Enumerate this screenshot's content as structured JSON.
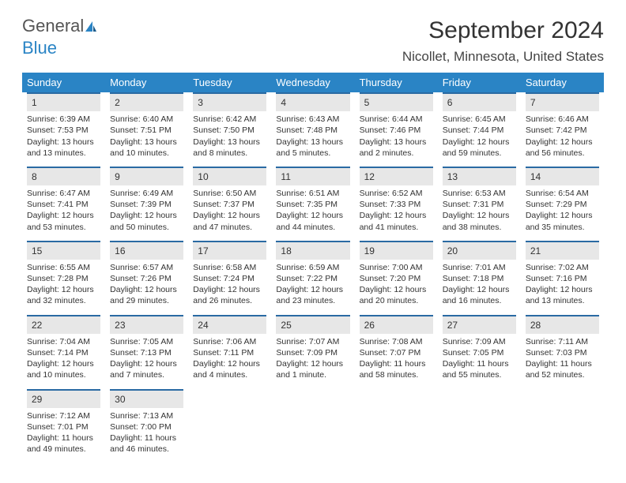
{
  "logo": {
    "text1": "General",
    "text2": "Blue"
  },
  "title": "September 2024",
  "location": "Nicollet, Minnesota, United States",
  "colors": {
    "header_bg": "#2a84c5",
    "header_text": "#ffffff",
    "daynum_bg": "#e7e7e7",
    "daynum_border": "#2a6aa3",
    "body_text": "#333333",
    "logo_gray": "#555555",
    "logo_blue": "#2a84c5"
  },
  "day_headers": [
    "Sunday",
    "Monday",
    "Tuesday",
    "Wednesday",
    "Thursday",
    "Friday",
    "Saturday"
  ],
  "weeks": [
    [
      {
        "n": "1",
        "sr": "6:39 AM",
        "ss": "7:53 PM",
        "dl": "13 hours and 13 minutes."
      },
      {
        "n": "2",
        "sr": "6:40 AM",
        "ss": "7:51 PM",
        "dl": "13 hours and 10 minutes."
      },
      {
        "n": "3",
        "sr": "6:42 AM",
        "ss": "7:50 PM",
        "dl": "13 hours and 8 minutes."
      },
      {
        "n": "4",
        "sr": "6:43 AM",
        "ss": "7:48 PM",
        "dl": "13 hours and 5 minutes."
      },
      {
        "n": "5",
        "sr": "6:44 AM",
        "ss": "7:46 PM",
        "dl": "13 hours and 2 minutes."
      },
      {
        "n": "6",
        "sr": "6:45 AM",
        "ss": "7:44 PM",
        "dl": "12 hours and 59 minutes."
      },
      {
        "n": "7",
        "sr": "6:46 AM",
        "ss": "7:42 PM",
        "dl": "12 hours and 56 minutes."
      }
    ],
    [
      {
        "n": "8",
        "sr": "6:47 AM",
        "ss": "7:41 PM",
        "dl": "12 hours and 53 minutes."
      },
      {
        "n": "9",
        "sr": "6:49 AM",
        "ss": "7:39 PM",
        "dl": "12 hours and 50 minutes."
      },
      {
        "n": "10",
        "sr": "6:50 AM",
        "ss": "7:37 PM",
        "dl": "12 hours and 47 minutes."
      },
      {
        "n": "11",
        "sr": "6:51 AM",
        "ss": "7:35 PM",
        "dl": "12 hours and 44 minutes."
      },
      {
        "n": "12",
        "sr": "6:52 AM",
        "ss": "7:33 PM",
        "dl": "12 hours and 41 minutes."
      },
      {
        "n": "13",
        "sr": "6:53 AM",
        "ss": "7:31 PM",
        "dl": "12 hours and 38 minutes."
      },
      {
        "n": "14",
        "sr": "6:54 AM",
        "ss": "7:29 PM",
        "dl": "12 hours and 35 minutes."
      }
    ],
    [
      {
        "n": "15",
        "sr": "6:55 AM",
        "ss": "7:28 PM",
        "dl": "12 hours and 32 minutes."
      },
      {
        "n": "16",
        "sr": "6:57 AM",
        "ss": "7:26 PM",
        "dl": "12 hours and 29 minutes."
      },
      {
        "n": "17",
        "sr": "6:58 AM",
        "ss": "7:24 PM",
        "dl": "12 hours and 26 minutes."
      },
      {
        "n": "18",
        "sr": "6:59 AM",
        "ss": "7:22 PM",
        "dl": "12 hours and 23 minutes."
      },
      {
        "n": "19",
        "sr": "7:00 AM",
        "ss": "7:20 PM",
        "dl": "12 hours and 20 minutes."
      },
      {
        "n": "20",
        "sr": "7:01 AM",
        "ss": "7:18 PM",
        "dl": "12 hours and 16 minutes."
      },
      {
        "n": "21",
        "sr": "7:02 AM",
        "ss": "7:16 PM",
        "dl": "12 hours and 13 minutes."
      }
    ],
    [
      {
        "n": "22",
        "sr": "7:04 AM",
        "ss": "7:14 PM",
        "dl": "12 hours and 10 minutes."
      },
      {
        "n": "23",
        "sr": "7:05 AM",
        "ss": "7:13 PM",
        "dl": "12 hours and 7 minutes."
      },
      {
        "n": "24",
        "sr": "7:06 AM",
        "ss": "7:11 PM",
        "dl": "12 hours and 4 minutes."
      },
      {
        "n": "25",
        "sr": "7:07 AM",
        "ss": "7:09 PM",
        "dl": "12 hours and 1 minute."
      },
      {
        "n": "26",
        "sr": "7:08 AM",
        "ss": "7:07 PM",
        "dl": "11 hours and 58 minutes."
      },
      {
        "n": "27",
        "sr": "7:09 AM",
        "ss": "7:05 PM",
        "dl": "11 hours and 55 minutes."
      },
      {
        "n": "28",
        "sr": "7:11 AM",
        "ss": "7:03 PM",
        "dl": "11 hours and 52 minutes."
      }
    ],
    [
      {
        "n": "29",
        "sr": "7:12 AM",
        "ss": "7:01 PM",
        "dl": "11 hours and 49 minutes."
      },
      {
        "n": "30",
        "sr": "7:13 AM",
        "ss": "7:00 PM",
        "dl": "11 hours and 46 minutes."
      },
      null,
      null,
      null,
      null,
      null
    ]
  ],
  "labels": {
    "sunrise": "Sunrise:",
    "sunset": "Sunset:",
    "daylight": "Daylight:"
  }
}
